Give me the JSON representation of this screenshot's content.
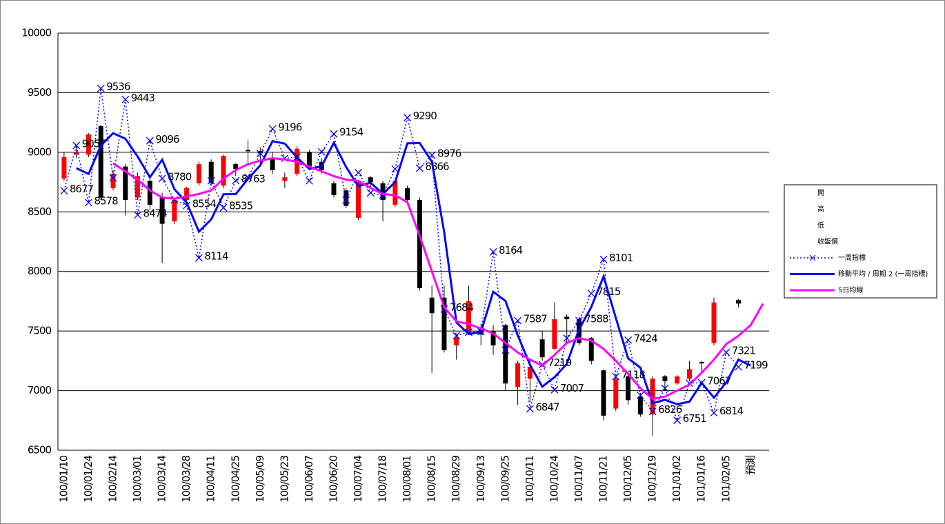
{
  "chart_data": {
    "type": "candlestick",
    "categories": [
      "100/01/10",
      null,
      "100/01/24",
      null,
      "100/02/14",
      null,
      "100/03/01",
      null,
      "100/03/14",
      null,
      "100/03/28",
      null,
      "100/04/11",
      null,
      "100/04/25",
      null,
      "100/05/09",
      null,
      "100/05/23",
      null,
      "100/06/07",
      null,
      "100/06/20",
      null,
      "100/07/04",
      null,
      "100/07/18",
      null,
      "100/08/01",
      null,
      "100/08/15",
      null,
      "100/08/29",
      null,
      "100/09/13",
      null,
      "100/09/25",
      null,
      "100/10/11",
      null,
      "100/10/24",
      null,
      "100/11/07",
      null,
      "100/11/21",
      null,
      "100/12/05",
      null,
      "100/12/19",
      null,
      "101/01/02",
      null,
      "101/01/16",
      null,
      "101/02/05",
      null,
      "預測",
      null
    ],
    "open": [
      8780,
      8980,
      8980,
      9220,
      8700,
      8880,
      8620,
      8760,
      8620,
      8420,
      8600,
      8740,
      8920,
      8720,
      8900,
      9020,
      9010,
      8950,
      8760,
      8820,
      9000,
      8920,
      8740,
      8680,
      8450,
      8790,
      8740,
      8560,
      8700,
      8600,
      7780,
      7780,
      7380,
      7500,
      7520,
      7500,
      7550,
      7030,
      7100,
      7430,
      7350,
      7620,
      7600,
      7440,
      7170,
      6850,
      7120,
      6950,
      6800,
      7120,
      7060,
      7100,
      7240,
      7400,
      null,
      7760,
      null,
      null
    ],
    "high": [
      9000,
      9050,
      9160,
      9230,
      8850,
      8900,
      8830,
      8790,
      8660,
      8620,
      8710,
      8920,
      8940,
      8980,
      8910,
      9100,
      9040,
      9000,
      8830,
      9050,
      9020,
      8950,
      8760,
      8700,
      8760,
      8800,
      8760,
      8780,
      8720,
      8620,
      7880,
      7880,
      7480,
      7880,
      7560,
      7550,
      7560,
      7250,
      7250,
      7500,
      7740,
      7640,
      7620,
      7450,
      7180,
      7120,
      7150,
      6980,
      7120,
      7130,
      7130,
      7250,
      7250,
      7780,
      null,
      7770,
      null,
      null
    ],
    "low": [
      8760,
      8950,
      8960,
      8600,
      8680,
      8470,
      8600,
      8520,
      8070,
      8400,
      8580,
      8720,
      8720,
      8700,
      8800,
      8900,
      8900,
      8820,
      8700,
      8800,
      8850,
      8820,
      8620,
      8530,
      8430,
      8700,
      8420,
      8540,
      8560,
      7840,
      7150,
      7320,
      7260,
      7480,
      7380,
      7300,
      7000,
      6880,
      6900,
      7250,
      7340,
      7400,
      7380,
      7220,
      6750,
      6830,
      6880,
      6780,
      6620,
      7000,
      7050,
      7080,
      7150,
      7380,
      null,
      7700,
      null,
      null
    ],
    "close": [
      8960,
      9000,
      9150,
      8620,
      8820,
      8600,
      8800,
      8560,
      8400,
      8600,
      8700,
      8900,
      8740,
      8970,
      8860,
      9010,
      8990,
      8850,
      8790,
      9030,
      8870,
      8850,
      8640,
      8550,
      8750,
      8750,
      8600,
      8760,
      8600,
      7860,
      7650,
      7340,
      7450,
      7750,
      7470,
      7380,
      7060,
      7230,
      7200,
      7280,
      7600,
      7600,
      7400,
      7250,
      6790,
      7100,
      6920,
      6800,
      7100,
      7080,
      7120,
      7180,
      7230,
      7740,
      null,
      7730,
      null,
      null
    ],
    "up_color": "#ff0000",
    "down_color": "#000000",
    "candle_legend": [
      "開",
      "高",
      "低",
      "收盤價"
    ],
    "series": [
      {
        "name": "一周指標",
        "color": "#0000ff",
        "style": "dotted",
        "marker": "x",
        "values": [
          8677,
          9057,
          8578,
          9536,
          8785,
          9443,
          8474,
          9096,
          8780,
          8600,
          8554,
          8114,
          8760,
          8535,
          8763,
          8790,
          8990,
          9196,
          8950,
          8960,
          8760,
          9004,
          9154,
          8600,
          8830,
          8660,
          8640,
          8860,
          9290,
          8866,
          8976,
          7684,
          7460,
          7490,
          7495,
          8164,
          7340,
          7587,
          6847,
          7219,
          7007,
          7440,
          7588,
          7815,
          8101,
          7118,
          7424,
          6961,
          6826,
          7020,
          6751,
          7063,
          7067,
          6814,
          7321,
          7199,
          null,
          null
        ],
        "value_labels": [
          "8677",
          "9057",
          "8578",
          "9536",
          null,
          "9443",
          "8474",
          "9096",
          "8780",
          null,
          "8554",
          "8114",
          null,
          "8535",
          "8763",
          null,
          null,
          "9196",
          null,
          null,
          null,
          null,
          "9154",
          null,
          null,
          null,
          null,
          null,
          "9290",
          "8866",
          "8976",
          "7684",
          null,
          null,
          null,
          "8164",
          null,
          "7587",
          "6847",
          "7219",
          "7007",
          null,
          "7588",
          "7815",
          "8101",
          "7118",
          "7424",
          null,
          "6826",
          null,
          "6751",
          null,
          "7067",
          "6814",
          "7321",
          "7199",
          null,
          null
        ]
      },
      {
        "name": "移動平均 / 周期 2 (一周指標)",
        "color": "#0000ff",
        "style": "solid",
        "values": [
          null,
          8867,
          8818,
          9057,
          9160,
          9114,
          8964,
          8790,
          8938,
          8690,
          8577,
          8334,
          8437,
          8648,
          8649,
          8777,
          8890,
          9093,
          9073,
          8955,
          8860,
          8882,
          9079,
          8877,
          8715,
          8745,
          8650,
          8750,
          9075,
          9078,
          8921,
          8330,
          7572,
          7475,
          7492,
          7830,
          7752,
          7464,
          7217,
          7033,
          7113,
          7224,
          7514,
          7702,
          7958,
          7610,
          7271,
          7193,
          6894,
          6923,
          6886,
          6907,
          7065,
          6941,
          7068,
          7260,
          7210,
          null
        ]
      },
      {
        "name": "5日均線",
        "color": "#ff00ff",
        "style": "solid",
        "values": [
          null,
          null,
          null,
          null,
          8907,
          8840,
          8770,
          8680,
          8620,
          8610,
          8630,
          8650,
          8680,
          8780,
          8850,
          8900,
          8930,
          8950,
          8940,
          8920,
          8880,
          8840,
          8800,
          8770,
          8760,
          8700,
          8650,
          8640,
          8580,
          8300,
          8000,
          7700,
          7580,
          7560,
          7520,
          7480,
          7400,
          7320,
          7260,
          7210,
          7300,
          7400,
          7440,
          7420,
          7350,
          7250,
          7140,
          7020,
          6930,
          6950,
          7000,
          7050,
          7150,
          7260,
          7390,
          7460,
          7550,
          7730
        ]
      }
    ],
    "ylim": [
      6500,
      10000
    ],
    "yticks": [
      6500,
      7000,
      7500,
      8000,
      8500,
      9000,
      9500,
      10000
    ],
    "grid": true,
    "legend": "right"
  }
}
